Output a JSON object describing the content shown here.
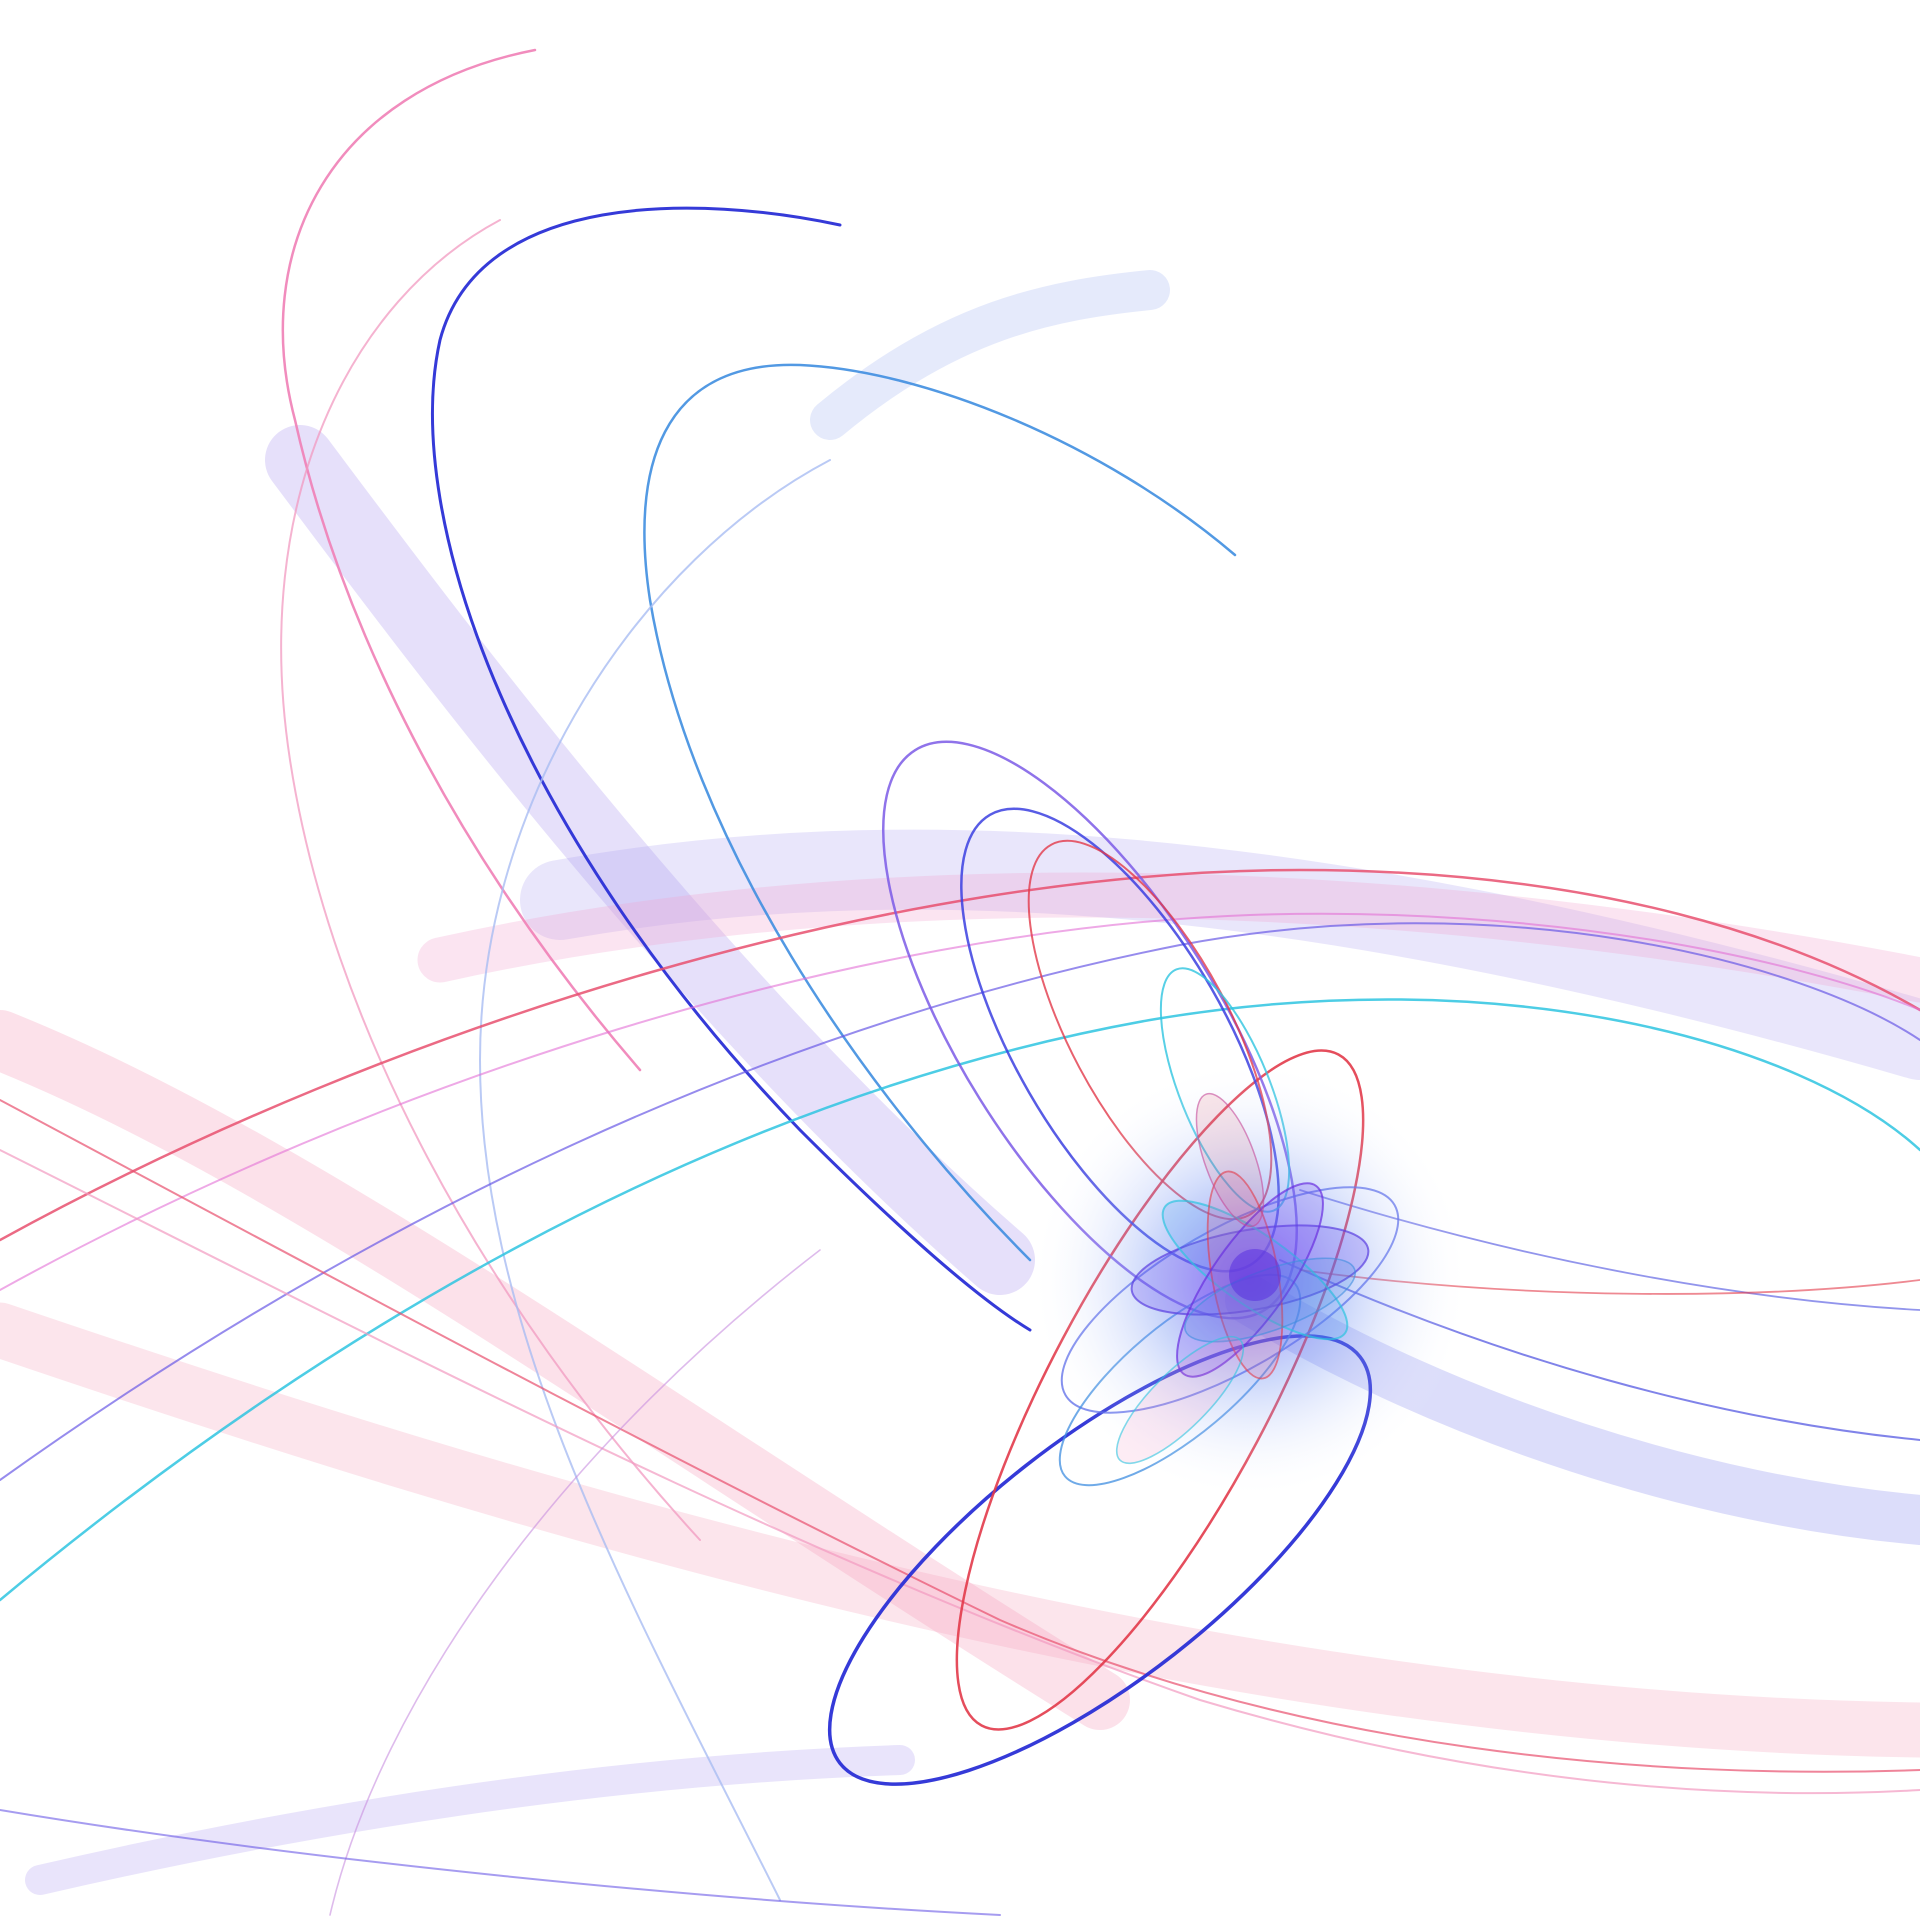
{
  "artwork": {
    "background_color": "#ffffff",
    "palette": {
      "deep_blue": "#2a2fd6",
      "sky_blue": "#3f8ee0",
      "cyan": "#2ec4e0",
      "violet": "#8a5ae6",
      "lavender": "#b7a6f2",
      "pink": "#f07fb6",
      "rose": "#e8506e",
      "red": "#e23a4a",
      "pale_blue": "#c9d7f7"
    }
  }
}
